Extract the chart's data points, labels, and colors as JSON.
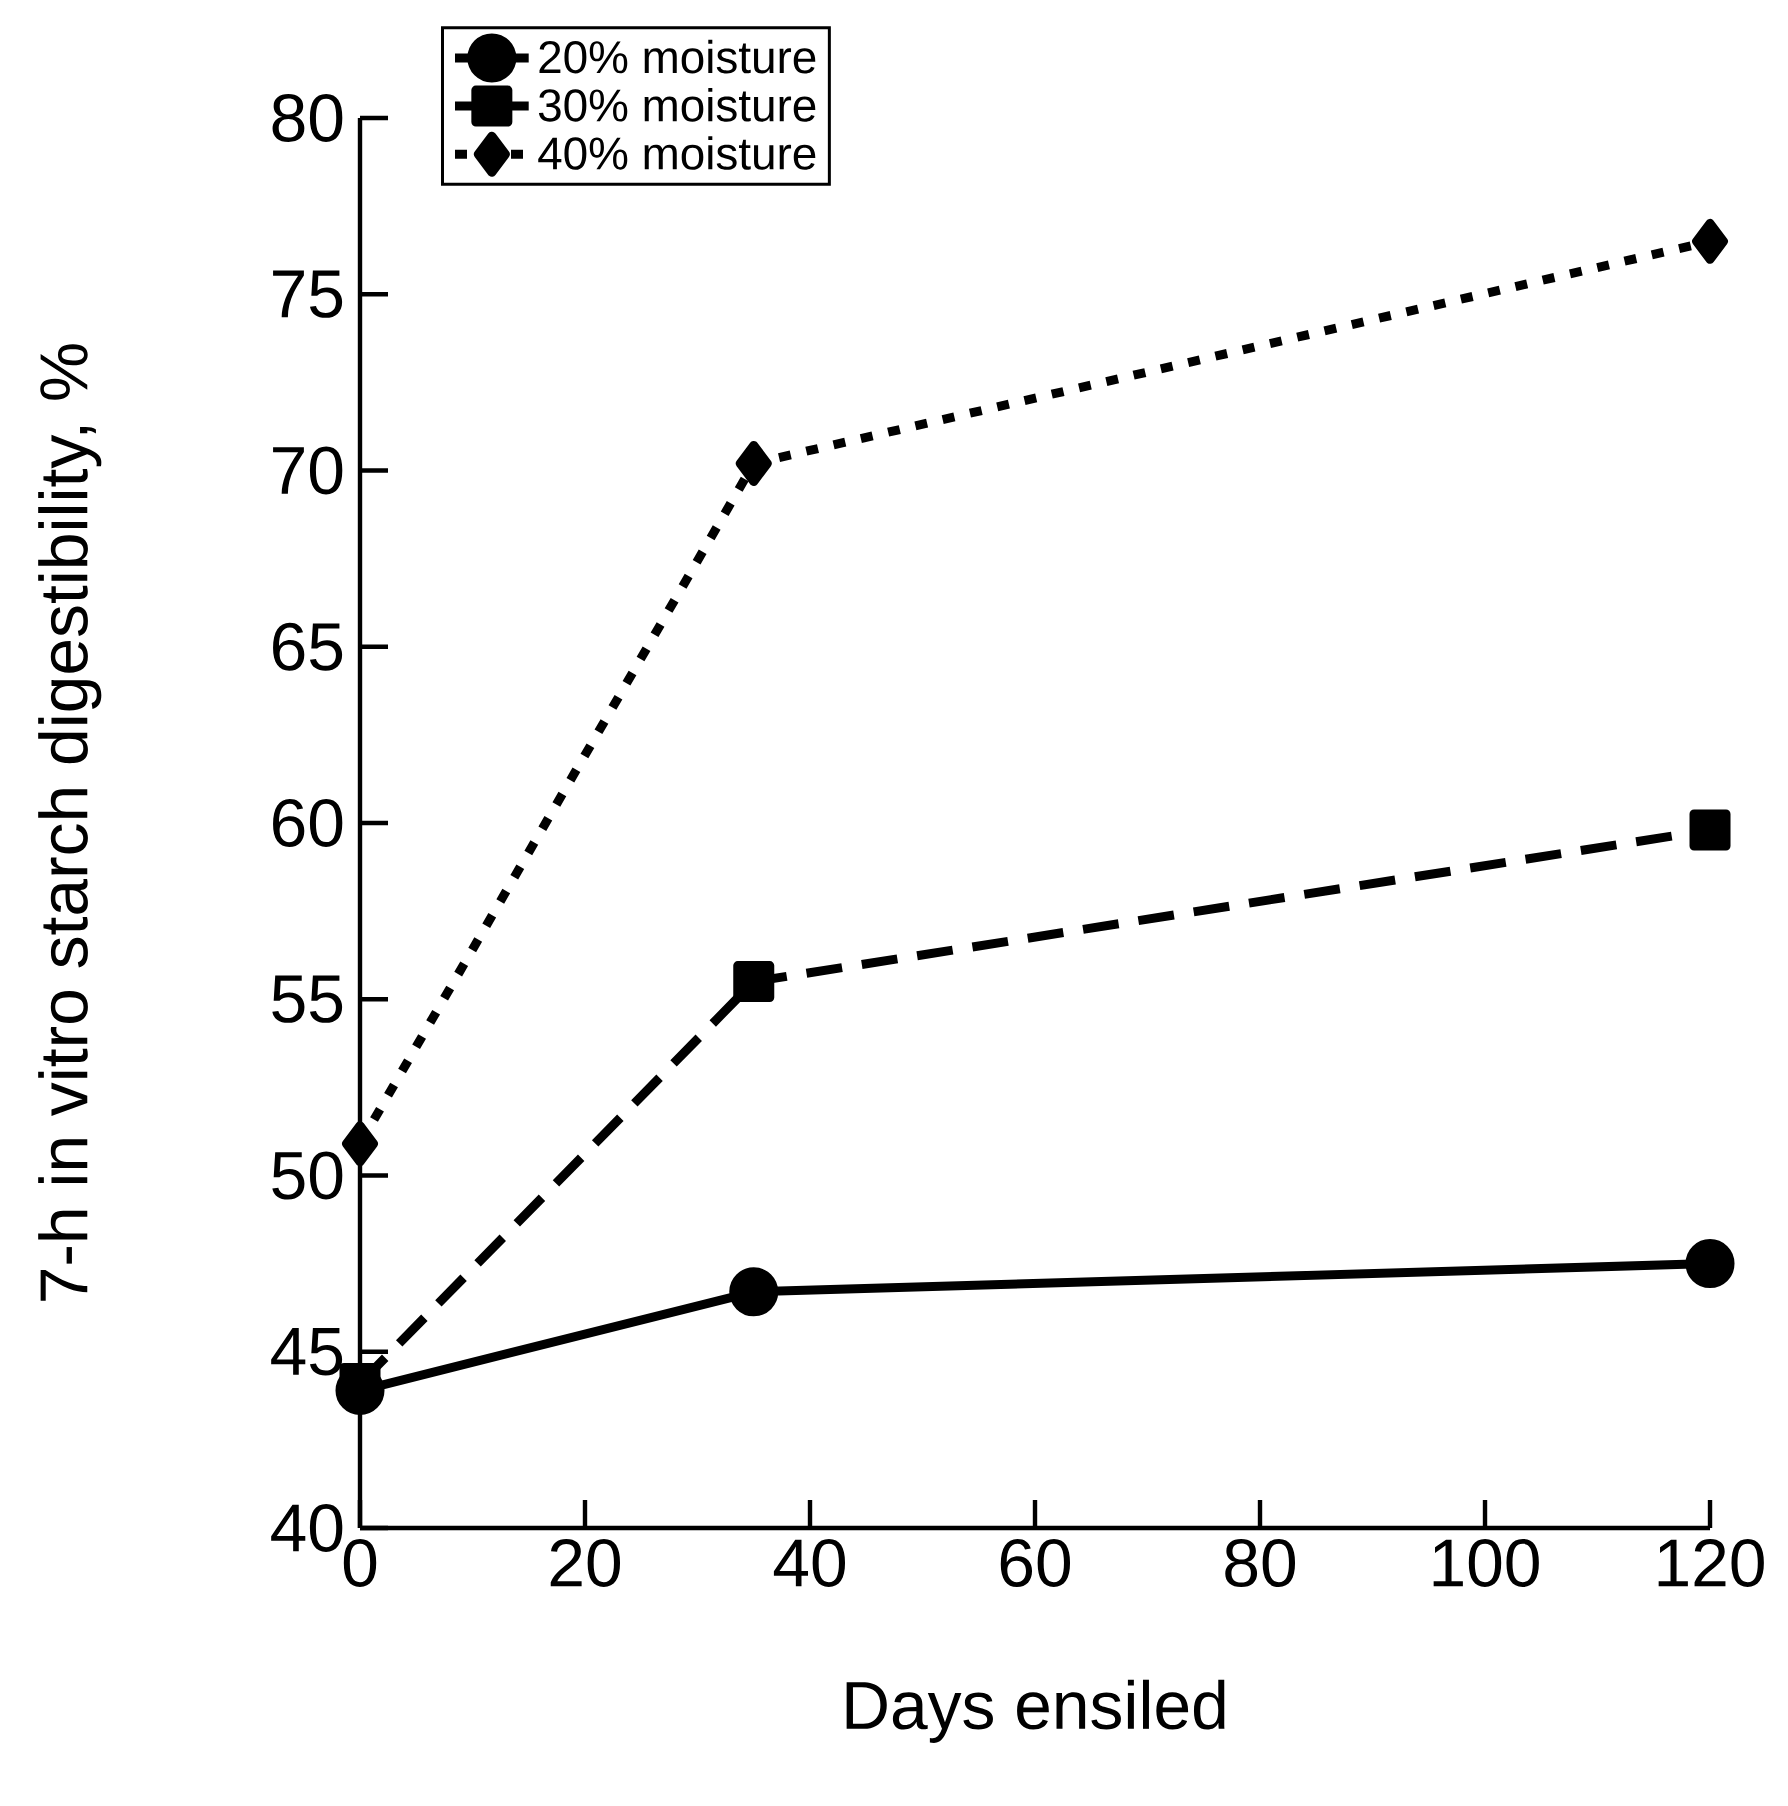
{
  "chart_data": {
    "type": "line",
    "xlabel": "Days ensiled",
    "ylabel": "7-h in vitro starch digestibility, %",
    "x": [
      0,
      35,
      120
    ],
    "series": [
      {
        "name": "20% moisture",
        "color": "#000000",
        "values": [
          43.9,
          46.7,
          47.5
        ],
        "marker": "circle",
        "line_style": "solid"
      },
      {
        "name": "30% moisture",
        "color": "#000000",
        "values": [
          44.1,
          55.5,
          59.8
        ],
        "marker": "square",
        "line_style": "dashed"
      },
      {
        "name": "40% moisture",
        "color": "#000000",
        "values": [
          50.9,
          70.2,
          76.5
        ],
        "marker": "diamond",
        "line_style": "dotted"
      }
    ],
    "xlim": [
      0,
      120
    ],
    "ylim": [
      40,
      80
    ],
    "xticks": [
      0,
      20,
      40,
      60,
      80,
      100,
      120
    ],
    "yticks": [
      40,
      45,
      50,
      55,
      60,
      65,
      70,
      75,
      80
    ],
    "grid": false,
    "legend": "top left"
  }
}
